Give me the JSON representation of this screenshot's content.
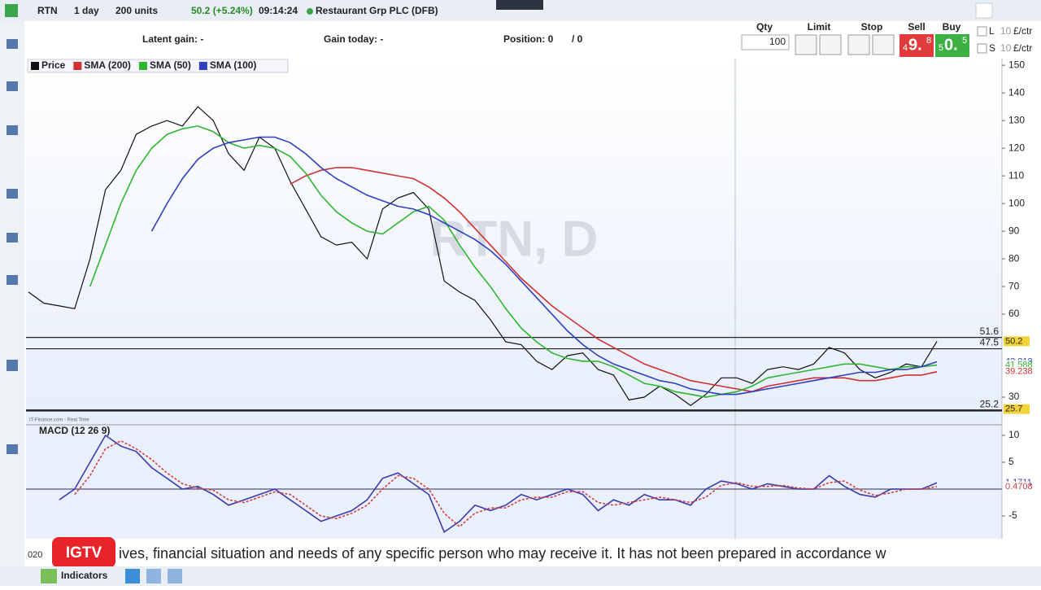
{
  "toolbar": {
    "symbol": "RTN",
    "interval": "1 day",
    "units": "200 units",
    "price": "50.2 (+5.24%)",
    "time": "09:14:24",
    "instrument": "Restaurant Grp PLC (DFB)"
  },
  "info_bar": {
    "latent_gain": "Latent gain: -",
    "gain_today": "Gain today: -",
    "position": "Position: 0",
    "position_total": "/ 0"
  },
  "order_panel": {
    "qty_label": "Qty",
    "qty": "100",
    "limit": "Limit",
    "stop": "Stop",
    "sell": "Sell",
    "buy": "Buy",
    "sell_price": {
      "lead": "4",
      "main": "9.",
      "pip": "8"
    },
    "buy_price": {
      "lead": "5",
      "main": "0.",
      "pip": "5"
    },
    "rows": [
      {
        "side": "L",
        "size": "10",
        "unit": "£/ctr"
      },
      {
        "side": "S",
        "size": "10",
        "unit": "£/ctr"
      }
    ]
  },
  "chart": {
    "type": "line",
    "watermark": "RTN, D",
    "source": "IT-Finance.com - Real Time",
    "date_stub": "020",
    "ylim": [
      20.6,
      152.4
    ],
    "yticks": [
      150,
      140,
      130,
      120,
      110,
      100,
      90,
      80,
      70,
      60,
      30
    ],
    "hlines": [
      51.6,
      47.5,
      25.2
    ],
    "series": [
      {
        "name": "Price",
        "color": "#111111",
        "values": [
          68,
          64,
          63,
          62,
          80,
          105,
          112,
          125,
          128,
          130,
          128,
          135,
          130,
          118,
          112,
          124,
          120,
          108,
          98,
          88,
          85,
          86,
          80,
          98,
          102,
          104,
          98,
          72,
          68,
          65,
          58,
          50,
          49,
          43,
          40,
          45,
          46,
          40,
          38,
          29,
          30,
          34,
          31,
          27,
          31,
          37,
          37,
          35,
          40,
          41,
          40,
          42,
          48,
          46,
          40,
          37,
          39,
          42,
          41,
          50.2
        ]
      },
      {
        "name": "SMA (200)",
        "color": "#d03030",
        "values": [
          null,
          null,
          null,
          null,
          null,
          null,
          null,
          null,
          null,
          null,
          null,
          null,
          null,
          null,
          null,
          null,
          null,
          107,
          110,
          112,
          113,
          113,
          112,
          111,
          110,
          109,
          106,
          102,
          97,
          91,
          85,
          79,
          73,
          68,
          63,
          59,
          55,
          51,
          48,
          45,
          42,
          40,
          38,
          36,
          35,
          34,
          33,
          32,
          34,
          35,
          36,
          37,
          37,
          37,
          36,
          36,
          37,
          38,
          38,
          39.2
        ]
      },
      {
        "name": "SMA (50)",
        "color": "#2fb52f",
        "values": [
          null,
          null,
          null,
          null,
          70,
          85,
          100,
          112,
          120,
          125,
          127,
          128,
          126,
          122,
          120,
          121,
          120,
          117,
          111,
          103,
          97,
          93,
          90,
          89,
          93,
          97,
          99,
          94,
          85,
          77,
          70,
          62,
          55,
          50,
          46,
          44,
          43,
          43,
          41,
          38,
          35,
          34,
          32,
          31,
          30,
          31,
          32,
          34,
          37,
          38,
          39,
          40,
          41,
          42,
          42,
          41,
          40,
          41,
          41,
          41.6
        ]
      },
      {
        "name": "SMA (100)",
        "color": "#2f3fbf",
        "values": [
          null,
          null,
          null,
          null,
          null,
          null,
          null,
          null,
          90,
          100,
          109,
          116,
          120,
          122,
          123,
          124,
          124,
          122,
          118,
          113,
          109,
          106,
          103,
          101,
          99,
          98,
          96,
          93,
          90,
          87,
          83,
          78,
          72,
          66,
          60,
          54,
          49,
          45,
          42,
          40,
          38,
          36,
          35,
          33,
          32,
          31,
          31,
          32,
          33,
          34,
          35,
          36,
          37,
          38,
          39,
          39,
          40,
          40,
          41,
          42.8
        ]
      }
    ],
    "badges": {
      "values": [
        50.2,
        42.818,
        41.588,
        39.238,
        25.7
      ],
      "colors": [
        "#f2d33a",
        "#2f3fbf",
        "#2fb52f",
        "#d03030",
        "#f2d33a"
      ]
    }
  },
  "macd": {
    "type": "line",
    "title": "MACD (12 26 9)",
    "ylim": [
      -8.94,
      11.97
    ],
    "yticks": [
      10,
      5,
      -5
    ],
    "zero": 0,
    "series": [
      {
        "name": "MACD",
        "color": "#3b3bb0",
        "values": [
          null,
          null,
          -2,
          0,
          5,
          10,
          8,
          7,
          4,
          2,
          0,
          0.5,
          -1,
          -3,
          -2,
          -1,
          0,
          -2,
          -4,
          -6,
          -5,
          -4,
          -2,
          2,
          3,
          1,
          -1,
          -8,
          -6,
          -3,
          -4,
          -3,
          -1,
          -2,
          -1,
          0,
          -1,
          -4,
          -2,
          -3,
          -1,
          -2,
          -2,
          -3,
          0,
          1.5,
          1,
          0,
          1,
          0.5,
          0,
          0,
          2.5,
          0.5,
          -1,
          -1.5,
          0,
          0,
          0,
          1.17
        ]
      },
      {
        "name": "Signal",
        "color": "#d04040",
        "values": [
          null,
          null,
          null,
          -1,
          2.5,
          7.5,
          9,
          7.5,
          5.5,
          3,
          1,
          0.2,
          -0.2,
          -2,
          -2.5,
          -1.5,
          -0.5,
          -1,
          -3,
          -5,
          -5.5,
          -4.5,
          -3,
          0,
          2.5,
          2,
          0,
          -4.5,
          -7,
          -4.5,
          -3.5,
          -3.5,
          -2,
          -1.5,
          -1.5,
          -0.5,
          -0.5,
          -2.5,
          -3,
          -2.5,
          -2,
          -1.5,
          -2,
          -2.5,
          -1.5,
          0.7,
          1.2,
          0.5,
          0.5,
          0.7,
          0.2,
          0,
          1.2,
          1.5,
          -0.2,
          -1.2,
          -0.7,
          0,
          0,
          0.47
        ]
      }
    ],
    "badges": {
      "values": [
        1.1711,
        0.4708
      ],
      "colors": [
        "#3b3bb0",
        "#d04040"
      ]
    }
  },
  "ticker": {
    "badge": "IGTV",
    "text": "ives, financial situation and needs of any specific person who may receive it. It has not been prepared in accordance w"
  },
  "bottom_bar": {
    "indicators": "Indicators"
  }
}
